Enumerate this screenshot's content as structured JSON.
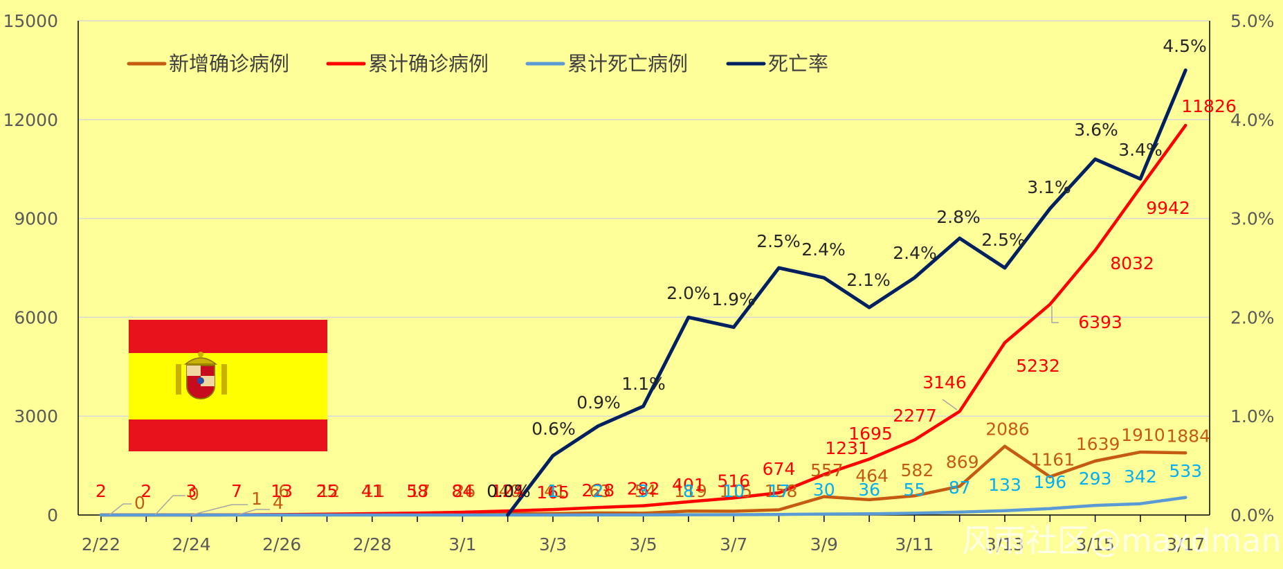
{
  "chart_data": {
    "type": "line",
    "categories": [
      "2/22",
      "2/23",
      "2/24",
      "2/25",
      "2/26",
      "2/27",
      "2/28",
      "2/29",
      "3/1",
      "3/2",
      "3/3",
      "3/4",
      "3/5",
      "3/6",
      "3/7",
      "3/8",
      "3/9",
      "3/10",
      "3/11",
      "3/12",
      "3/13",
      "3/14",
      "3/15",
      "3/16",
      "3/17"
    ],
    "x_tick_labels": [
      "2/22",
      "2/24",
      "2/26",
      "2/28",
      "3/1",
      "3/3",
      "3/5",
      "3/7",
      "3/9",
      "3/11",
      "3/13",
      "3/15",
      "3/17"
    ],
    "left_axis": {
      "ylim": [
        0,
        15000
      ],
      "ticks": [
        "0",
        "3000",
        "6000",
        "9000",
        "12000",
        "15000"
      ]
    },
    "right_axis": {
      "ylim": [
        0,
        5.0
      ],
      "ticks": [
        "0.0%",
        "1.0%",
        "2.0%",
        "3.0%",
        "4.0%",
        "5.0%"
      ]
    },
    "grid": "horizontal",
    "legend_position": "top-left",
    "series": [
      {
        "name": "新增确诊病例",
        "axis": "left",
        "color": "#C55A11",
        "values": [
          0,
          0,
          1,
          4,
          6,
          12,
          11,
          17,
          26,
          40,
          41,
          63,
          54,
          119,
          115,
          158,
          557,
          464,
          582,
          869,
          2086,
          1161,
          1639,
          1910,
          1884
        ]
      },
      {
        "name": "累计确诊病例",
        "axis": "left",
        "color": "#FF0000",
        "values": [
          2,
          2,
          3,
          7,
          13,
          25,
          41,
          58,
          84,
          124,
          165,
          228,
          282,
          401,
          516,
          674,
          1231,
          1695,
          2277,
          3146,
          5232,
          6393,
          8032,
          9942,
          11826
        ]
      },
      {
        "name": "累计死亡病例",
        "axis": "left",
        "color": "#5B9BD5",
        "values": [
          0,
          0,
          0,
          0,
          0,
          0,
          0,
          0,
          0,
          0,
          1,
          2,
          3,
          8,
          10,
          17,
          30,
          36,
          55,
          87,
          133,
          196,
          293,
          342,
          533
        ]
      },
      {
        "name": "死亡率",
        "axis": "right",
        "color": "#002060",
        "values": [
          null,
          null,
          null,
          null,
          null,
          null,
          null,
          null,
          null,
          0.0,
          0.6,
          0.9,
          1.1,
          2.0,
          1.9,
          2.5,
          2.4,
          2.1,
          2.4,
          2.8,
          2.5,
          3.1,
          3.6,
          3.4,
          4.5
        ]
      }
    ],
    "data_labels": {
      "new": [
        "0",
        "0",
        "1",
        "4",
        "6",
        "12",
        "11",
        "17",
        "26",
        "40",
        "41",
        "63",
        "54",
        "119",
        "115",
        "158",
        "557",
        "464",
        "582",
        "869",
        "2086",
        "1161",
        "1639",
        "1910",
        "1884"
      ],
      "cumulative": [
        "2",
        "2",
        "3",
        "7",
        "13",
        "25",
        "41",
        "58",
        "84",
        "124",
        "165",
        "228",
        "282",
        "401",
        "516",
        "674",
        "1231",
        "1695",
        "2277",
        "3146",
        "5232",
        "6393",
        "8032",
        "9942",
        "11826"
      ],
      "deaths": [
        "1",
        "2",
        "3",
        "8",
        "10",
        "17",
        "30",
        "36",
        "55",
        "87",
        "133",
        "196",
        "293",
        "342",
        "533"
      ],
      "rate": [
        "0.0%",
        "0.6%",
        "0.9%",
        "1.1%",
        "2.0%",
        "1.9%",
        "2.5%",
        "2.4%",
        "2.1%",
        "2.4%",
        "2.8%",
        "2.5%",
        "3.1%",
        "3.6%",
        "3.4%",
        "4.5%"
      ]
    }
  },
  "watermark": "风雨社区@maxdman",
  "flag_image": "spain-flag-icon"
}
